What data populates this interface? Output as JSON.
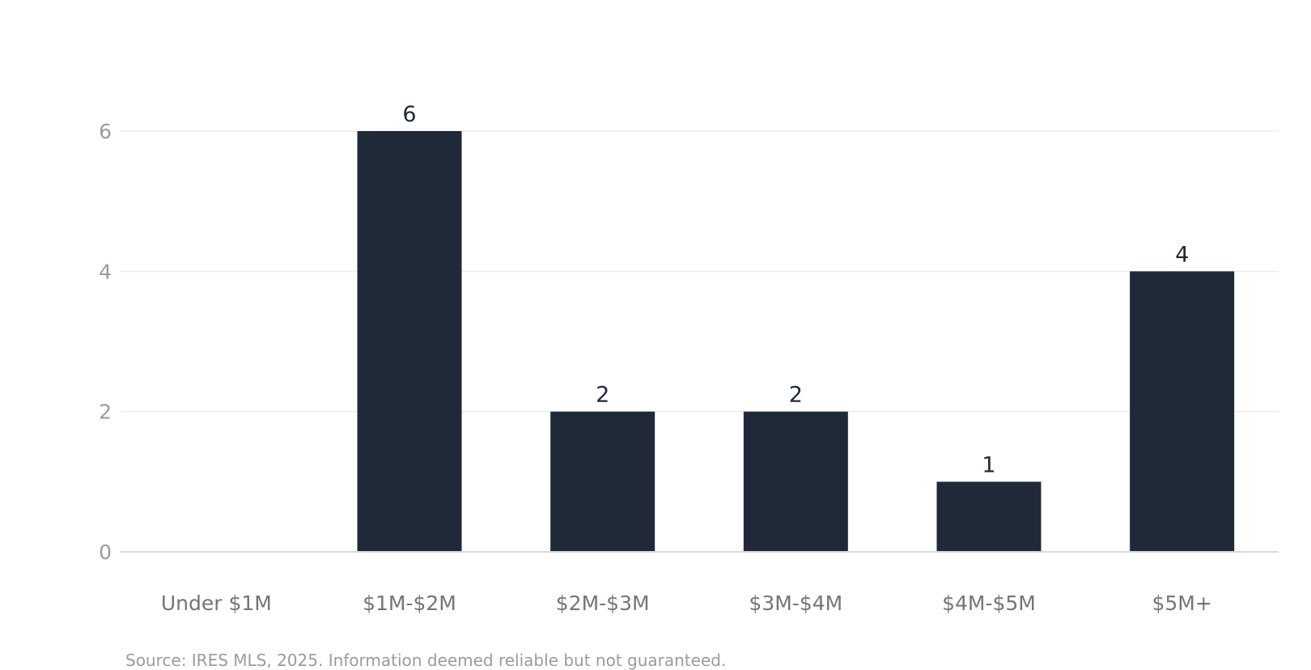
{
  "chart_data": {
    "type": "bar",
    "title": "",
    "xlabel": "",
    "ylabel": "",
    "categories": [
      "Under $1M",
      "$1M-$2M",
      "$2M-$3M",
      "$3M-$4M",
      "$4M-$5M",
      "$5M+"
    ],
    "values": [
      0,
      6,
      2,
      2,
      1,
      4
    ],
    "ylim": [
      0,
      6.8
    ],
    "yticks": [
      0,
      2,
      4,
      6
    ],
    "grid": true,
    "legend": "none",
    "bar_color": "#1f2937",
    "data_label_color": "#1f2937",
    "tick_label_color": "#9b9b9b",
    "category_label_color": "#757575",
    "grid_color": "#ececec",
    "axis_color": "#d9d9d9"
  },
  "source": "Source: IRES MLS, 2025. Information deemed reliable but not guaranteed."
}
